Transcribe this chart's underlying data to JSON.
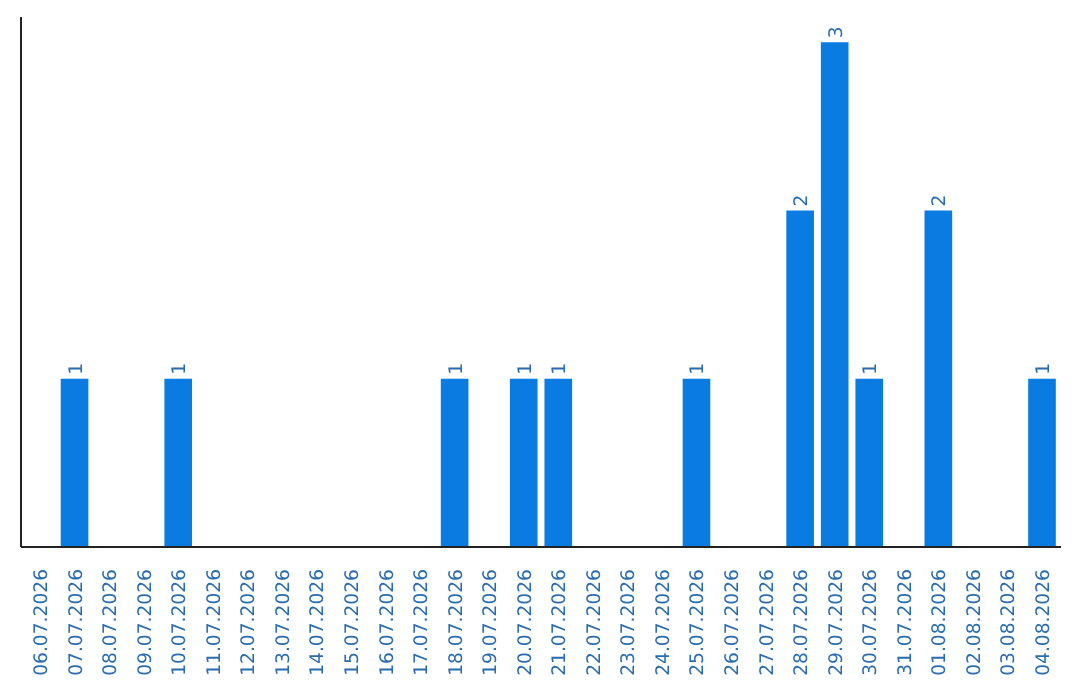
{
  "chart_data": {
    "type": "bar",
    "categories": [
      "06.07.2026",
      "07.07.2026",
      "08.07.2026",
      "09.07.2026",
      "10.07.2026",
      "11.07.2026",
      "12.07.2026",
      "13.07.2026",
      "14.07.2026",
      "15.07.2026",
      "16.07.2026",
      "17.07.2026",
      "18.07.2026",
      "19.07.2026",
      "20.07.2026",
      "21.07.2026",
      "22.07.2026",
      "23.07.2026",
      "24.07.2026",
      "25.07.2026",
      "26.07.2026",
      "27.07.2026",
      "28.07.2026",
      "29.07.2026",
      "30.07.2026",
      "31.07.2026",
      "01.08.2026",
      "02.08.2026",
      "03.08.2026",
      "04.08.2026"
    ],
    "values": [
      0,
      1,
      0,
      0,
      1,
      0,
      0,
      0,
      0,
      0,
      0,
      0,
      1,
      0,
      1,
      1,
      0,
      0,
      0,
      1,
      0,
      0,
      2,
      3,
      1,
      0,
      2,
      0,
      0,
      1
    ],
    "value_labels": [
      null,
      "1",
      null,
      null,
      "1",
      null,
      null,
      null,
      null,
      null,
      null,
      null,
      "1",
      null,
      "1",
      "1",
      null,
      null,
      null,
      "1",
      null,
      null,
      "2",
      "3",
      "1",
      null,
      "2",
      null,
      null,
      "1"
    ],
    "color": "#0a7be0",
    "grid": false
  }
}
